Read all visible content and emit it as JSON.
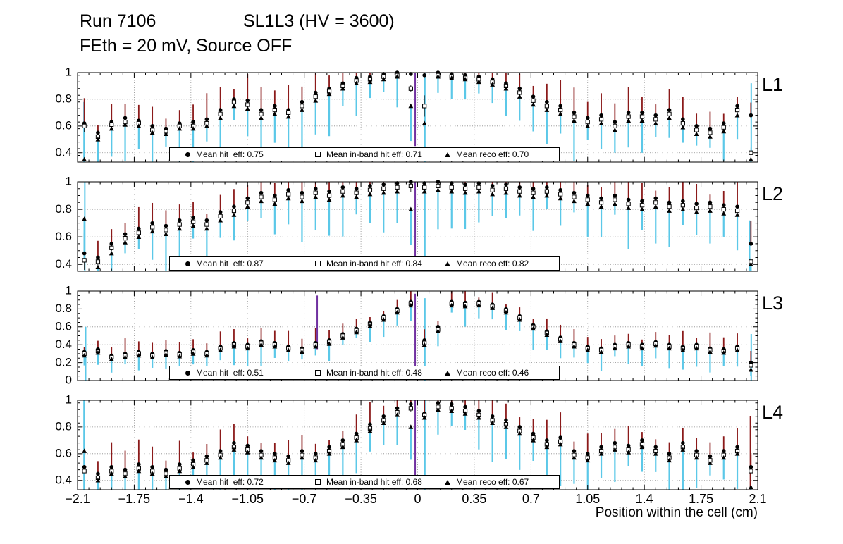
{
  "header": {
    "run_title": "Run 7106",
    "config_title": "SL1L3 (HV = 3600)",
    "subtitle": "FEth = 20 mV, Source OFF"
  },
  "xaxis": {
    "title": "Position within the cell (cm)",
    "range": [
      -2.1,
      2.1
    ],
    "ticks": [
      -2.1,
      -1.75,
      -1.4,
      -1.05,
      -0.7,
      -0.35,
      0,
      0.35,
      0.7,
      1.05,
      1.4,
      1.75,
      2.1
    ],
    "tick_labels": [
      "−2.1",
      "−1.75",
      "−1.4",
      "−1.05",
      "−0.7",
      "−0.35",
      "0",
      "0.35",
      "0.7",
      "1.05",
      "1.4",
      "1.75",
      "2.1"
    ]
  },
  "colors": {
    "marker": "#000000",
    "err_up": "#8b1a1a",
    "err_down": "#5bc8e8",
    "center_spike": "#7030a0",
    "grid": "#8a8a8a"
  },
  "chart_data": [
    {
      "type": "scatter",
      "label": "L1",
      "ylim": [
        0.33,
        1.0
      ],
      "yticks": [
        0.4,
        0.6,
        0.8,
        1
      ],
      "ytick_labels": [
        "0.4",
        "0.6",
        "0.8",
        "1"
      ],
      "x_start": -2.058,
      "x_step": 0.084,
      "series": [
        {
          "name": "hit efficiency",
          "marker": "circle",
          "legend": "Mean hit  eff: 0.75",
          "mean": 0.75,
          "err_base": 0.1,
          "values": [
            0.62,
            0.55,
            0.63,
            0.66,
            0.64,
            0.6,
            0.58,
            0.62,
            0.63,
            0.65,
            0.72,
            0.8,
            0.79,
            0.72,
            0.75,
            0.72,
            0.78,
            0.85,
            0.88,
            0.92,
            0.96,
            0.97,
            0.99,
            1.0,
            0.99,
            0.98,
            1.0,
            0.99,
            0.98,
            0.97,
            0.95,
            0.92,
            0.88,
            0.82,
            0.78,
            0.75,
            0.7,
            0.66,
            0.68,
            0.63,
            0.7,
            0.7,
            0.68,
            0.72,
            0.65,
            0.6,
            0.58,
            0.62,
            0.75,
            0.68
          ]
        },
        {
          "name": "in-band hit efficiency",
          "marker": "square",
          "legend": "Mean in-band hit eff: 0.71",
          "mean": 0.71,
          "err_base": 0.05,
          "values": [
            0.6,
            0.52,
            0.61,
            0.63,
            0.62,
            0.57,
            0.56,
            0.6,
            0.6,
            0.62,
            0.69,
            0.78,
            0.76,
            0.69,
            0.72,
            0.7,
            0.75,
            0.82,
            0.86,
            0.9,
            0.94,
            0.95,
            0.97,
            0.98,
            0.88,
            0.75,
            0.98,
            0.97,
            0.96,
            0.95,
            0.93,
            0.9,
            0.85,
            0.79,
            0.75,
            0.72,
            0.67,
            0.63,
            0.65,
            0.6,
            0.67,
            0.67,
            0.65,
            0.69,
            0.62,
            0.57,
            0.55,
            0.59,
            0.72,
            0.4
          ]
        },
        {
          "name": "reco efficiency",
          "marker": "triangle",
          "legend": "Mean reco eff: 0.70",
          "mean": 0.7,
          "err_base": 0.16,
          "values": [
            0.35,
            0.5,
            0.58,
            0.61,
            0.6,
            0.55,
            0.54,
            0.58,
            0.58,
            0.6,
            0.66,
            0.75,
            0.73,
            0.66,
            0.69,
            0.67,
            0.72,
            0.79,
            0.84,
            0.88,
            0.92,
            0.93,
            0.95,
            0.97,
            0.75,
            0.62,
            0.97,
            0.96,
            0.95,
            0.93,
            0.91,
            0.88,
            0.82,
            0.76,
            0.72,
            0.69,
            0.64,
            0.6,
            0.62,
            0.57,
            0.64,
            0.64,
            0.62,
            0.66,
            0.59,
            0.54,
            0.52,
            0.56,
            0.68,
            0.35
          ]
        }
      ],
      "spikes": [
        {
          "x": -2.06,
          "y0": 0.33,
          "y1": 0.78,
          "color": "#5bc8e8"
        },
        {
          "x": -0.015,
          "y0": 0.45,
          "y1": 1.0,
          "color": "#7030a0"
        },
        {
          "x": 0.045,
          "y0": 0.33,
          "y1": 1.0,
          "color": "#5bc8e8"
        },
        {
          "x": 2.06,
          "y0": 0.4,
          "y1": 0.92,
          "color": "#5bc8e8"
        }
      ]
    },
    {
      "type": "scatter",
      "label": "L2",
      "ylim": [
        0.35,
        1.0
      ],
      "yticks": [
        0.4,
        0.6,
        0.8,
        1
      ],
      "ytick_labels": [
        "0.4",
        "0.6",
        "0.8",
        "1"
      ],
      "x_start": -2.058,
      "x_step": 0.084,
      "series": [
        {
          "name": "hit efficiency",
          "marker": "circle",
          "legend": "Mean hit  eff: 0.87",
          "mean": 0.87,
          "err_base": 0.09,
          "values": [
            0.48,
            0.45,
            0.55,
            0.62,
            0.66,
            0.7,
            0.68,
            0.72,
            0.74,
            0.72,
            0.78,
            0.82,
            0.88,
            0.92,
            0.9,
            0.94,
            0.92,
            0.95,
            0.93,
            0.96,
            0.95,
            0.97,
            0.98,
            0.99,
            1.0,
            0.99,
            1.0,
            0.99,
            0.98,
            0.99,
            0.97,
            0.98,
            0.96,
            0.95,
            0.96,
            0.94,
            0.92,
            0.9,
            0.88,
            0.9,
            0.87,
            0.86,
            0.88,
            0.85,
            0.86,
            0.84,
            0.85,
            0.83,
            0.82,
            0.55
          ]
        },
        {
          "name": "in-band hit efficiency",
          "marker": "square",
          "legend": "Mean in-band hit eff: 0.84",
          "mean": 0.84,
          "err_base": 0.05,
          "values": [
            0.43,
            0.42,
            0.52,
            0.59,
            0.63,
            0.67,
            0.65,
            0.69,
            0.71,
            0.69,
            0.75,
            0.79,
            0.85,
            0.89,
            0.87,
            0.91,
            0.89,
            0.92,
            0.9,
            0.93,
            0.92,
            0.94,
            0.95,
            0.96,
            0.97,
            0.96,
            0.97,
            0.96,
            0.95,
            0.96,
            0.94,
            0.95,
            0.93,
            0.92,
            0.93,
            0.91,
            0.89,
            0.87,
            0.85,
            0.87,
            0.84,
            0.83,
            0.85,
            0.82,
            0.83,
            0.81,
            0.82,
            0.8,
            0.79,
            0.42
          ]
        },
        {
          "name": "reco efficiency",
          "marker": "triangle",
          "legend": "Mean reco eff: 0.82",
          "mean": 0.82,
          "err_base": 0.15,
          "values": [
            0.73,
            0.38,
            0.48,
            0.56,
            0.6,
            0.64,
            0.62,
            0.66,
            0.68,
            0.66,
            0.72,
            0.76,
            0.82,
            0.86,
            0.84,
            0.88,
            0.86,
            0.89,
            0.87,
            0.9,
            0.89,
            0.91,
            0.92,
            0.93,
            0.8,
            0.93,
            0.94,
            0.93,
            0.92,
            0.93,
            0.91,
            0.92,
            0.9,
            0.89,
            0.9,
            0.88,
            0.86,
            0.84,
            0.82,
            0.84,
            0.81,
            0.8,
            0.82,
            0.79,
            0.8,
            0.78,
            0.79,
            0.77,
            0.76,
            0.4
          ]
        }
      ],
      "spikes": [
        {
          "x": -2.055,
          "y0": 0.35,
          "y1": 1.0,
          "color": "#5bc8e8"
        },
        {
          "x": -0.015,
          "y0": 0.42,
          "y1": 1.0,
          "color": "#7030a0"
        },
        {
          "x": 0.045,
          "y0": 0.35,
          "y1": 1.0,
          "color": "#5bc8e8"
        },
        {
          "x": 2.05,
          "y0": 0.35,
          "y1": 0.72,
          "color": "#5bc8e8"
        }
      ]
    },
    {
      "type": "scatter",
      "label": "L3",
      "ylim": [
        0,
        1.0
      ],
      "yticks": [
        0,
        0.2,
        0.4,
        0.6,
        0.8,
        1
      ],
      "ytick_labels": [
        "0",
        "0.2",
        "0.4",
        "0.6",
        "0.8",
        "1"
      ],
      "x_start": -2.058,
      "x_step": 0.084,
      "series": [
        {
          "name": "hit efficiency",
          "marker": "circle",
          "legend": "Mean hit  eff: 0.51",
          "mean": 0.51,
          "err_base": 0.09,
          "values": [
            0.32,
            0.35,
            0.28,
            0.3,
            0.32,
            0.3,
            0.33,
            0.31,
            0.34,
            0.32,
            0.38,
            0.42,
            0.4,
            0.44,
            0.42,
            0.38,
            0.36,
            0.42,
            0.45,
            0.52,
            0.58,
            0.65,
            0.72,
            0.8,
            0.88,
            0.45,
            0.6,
            0.88,
            0.87,
            0.88,
            0.85,
            0.8,
            0.72,
            0.62,
            0.55,
            0.48,
            0.42,
            0.38,
            0.36,
            0.4,
            0.42,
            0.4,
            0.43,
            0.4,
            0.38,
            0.4,
            0.36,
            0.35,
            0.38,
            0.2
          ]
        },
        {
          "name": "in-band hit efficiency",
          "marker": "square",
          "legend": "Mean in-band hit eff: 0.48",
          "mean": 0.48,
          "err_base": 0.05,
          "values": [
            0.3,
            0.33,
            0.26,
            0.28,
            0.3,
            0.28,
            0.31,
            0.29,
            0.32,
            0.3,
            0.36,
            0.4,
            0.38,
            0.42,
            0.4,
            0.36,
            0.34,
            0.4,
            0.43,
            0.5,
            0.56,
            0.63,
            0.7,
            0.78,
            0.86,
            0.42,
            0.57,
            0.86,
            0.85,
            0.86,
            0.83,
            0.78,
            0.7,
            0.6,
            0.53,
            0.46,
            0.4,
            0.36,
            0.34,
            0.38,
            0.4,
            0.38,
            0.41,
            0.38,
            0.36,
            0.38,
            0.34,
            0.33,
            0.36,
            0.17
          ]
        },
        {
          "name": "reco efficiency",
          "marker": "triangle",
          "legend": "Mean reco eff: 0.46",
          "mean": 0.46,
          "err_base": 0.12,
          "values": [
            0.28,
            0.31,
            0.24,
            0.26,
            0.28,
            0.26,
            0.29,
            0.27,
            0.3,
            0.28,
            0.34,
            0.38,
            0.36,
            0.4,
            0.38,
            0.34,
            0.32,
            0.38,
            0.41,
            0.48,
            0.54,
            0.61,
            0.68,
            0.76,
            0.84,
            0.4,
            0.55,
            0.84,
            0.83,
            0.84,
            0.81,
            0.76,
            0.68,
            0.58,
            0.51,
            0.44,
            0.38,
            0.34,
            0.32,
            0.36,
            0.38,
            0.36,
            0.39,
            0.36,
            0.34,
            0.36,
            0.32,
            0.31,
            0.34,
            0.12
          ]
        }
      ],
      "spikes": [
        {
          "x": -2.05,
          "y0": 0.0,
          "y1": 0.6,
          "color": "#5bc8e8"
        },
        {
          "x": -0.62,
          "y0": 0.35,
          "y1": 0.95,
          "color": "#7030a0"
        },
        {
          "x": -0.015,
          "y0": 0.1,
          "y1": 0.97,
          "color": "#7030a0"
        },
        {
          "x": 0.045,
          "y0": 0.0,
          "y1": 0.92,
          "color": "#5bc8e8"
        },
        {
          "x": 2.06,
          "y0": 0.0,
          "y1": 0.52,
          "color": "#5bc8e8"
        }
      ]
    },
    {
      "type": "scatter",
      "label": "L4",
      "ylim": [
        0.33,
        1.0
      ],
      "yticks": [
        0.4,
        0.6,
        0.8,
        1
      ],
      "ytick_labels": [
        "0.4",
        "0.6",
        "0.8",
        "1"
      ],
      "x_start": -2.058,
      "x_step": 0.084,
      "series": [
        {
          "name": "hit efficiency",
          "marker": "circle",
          "legend": "Mean hit  eff: 0.72",
          "mean": 0.72,
          "err_base": 0.1,
          "values": [
            0.5,
            0.45,
            0.5,
            0.48,
            0.52,
            0.5,
            0.48,
            0.52,
            0.55,
            0.58,
            0.62,
            0.68,
            0.66,
            0.62,
            0.6,
            0.58,
            0.62,
            0.6,
            0.65,
            0.7,
            0.75,
            0.82,
            0.88,
            0.94,
            0.97,
            0.9,
            0.98,
            0.97,
            0.95,
            0.92,
            0.88,
            0.85,
            0.8,
            0.75,
            0.7,
            0.72,
            0.62,
            0.6,
            0.65,
            0.68,
            0.66,
            0.7,
            0.65,
            0.6,
            0.68,
            0.62,
            0.58,
            0.62,
            0.65,
            0.5
          ]
        },
        {
          "name": "in-band hit efficiency",
          "marker": "square",
          "legend": "Mean in-band hit eff: 0.68",
          "mean": 0.68,
          "err_base": 0.05,
          "values": [
            0.47,
            0.42,
            0.47,
            0.45,
            0.49,
            0.47,
            0.45,
            0.49,
            0.52,
            0.55,
            0.59,
            0.65,
            0.63,
            0.59,
            0.57,
            0.55,
            0.59,
            0.57,
            0.62,
            0.67,
            0.72,
            0.79,
            0.85,
            0.91,
            0.94,
            0.89,
            0.95,
            0.94,
            0.92,
            0.89,
            0.85,
            0.82,
            0.77,
            0.72,
            0.67,
            0.69,
            0.59,
            0.57,
            0.62,
            0.65,
            0.63,
            0.67,
            0.62,
            0.57,
            0.65,
            0.59,
            0.55,
            0.59,
            0.62,
            0.47
          ]
        },
        {
          "name": "reco efficiency",
          "marker": "triangle",
          "legend": "Mean reco eff: 0.67",
          "mean": 0.67,
          "err_base": 0.16,
          "values": [
            0.62,
            0.4,
            0.45,
            0.43,
            0.47,
            0.45,
            0.43,
            0.47,
            0.5,
            0.53,
            0.57,
            0.63,
            0.61,
            0.57,
            0.55,
            0.53,
            0.57,
            0.55,
            0.6,
            0.65,
            0.7,
            0.77,
            0.83,
            0.89,
            0.8,
            0.87,
            0.93,
            0.92,
            0.9,
            0.87,
            0.83,
            0.8,
            0.75,
            0.7,
            0.65,
            0.67,
            0.57,
            0.55,
            0.6,
            0.63,
            0.61,
            0.65,
            0.6,
            0.55,
            0.63,
            0.57,
            0.53,
            0.57,
            0.6,
            0.35
          ]
        }
      ],
      "spikes": [
        {
          "x": -2.06,
          "y0": 0.33,
          "y1": 1.0,
          "color": "#5bc8e8"
        },
        {
          "x": -0.015,
          "y0": 0.4,
          "y1": 1.0,
          "color": "#7030a0"
        },
        {
          "x": 0.045,
          "y0": 0.33,
          "y1": 1.0,
          "color": "#5bc8e8"
        },
        {
          "x": 2.055,
          "y0": 0.33,
          "y1": 0.88,
          "color": "#8b1a1a"
        }
      ]
    }
  ]
}
